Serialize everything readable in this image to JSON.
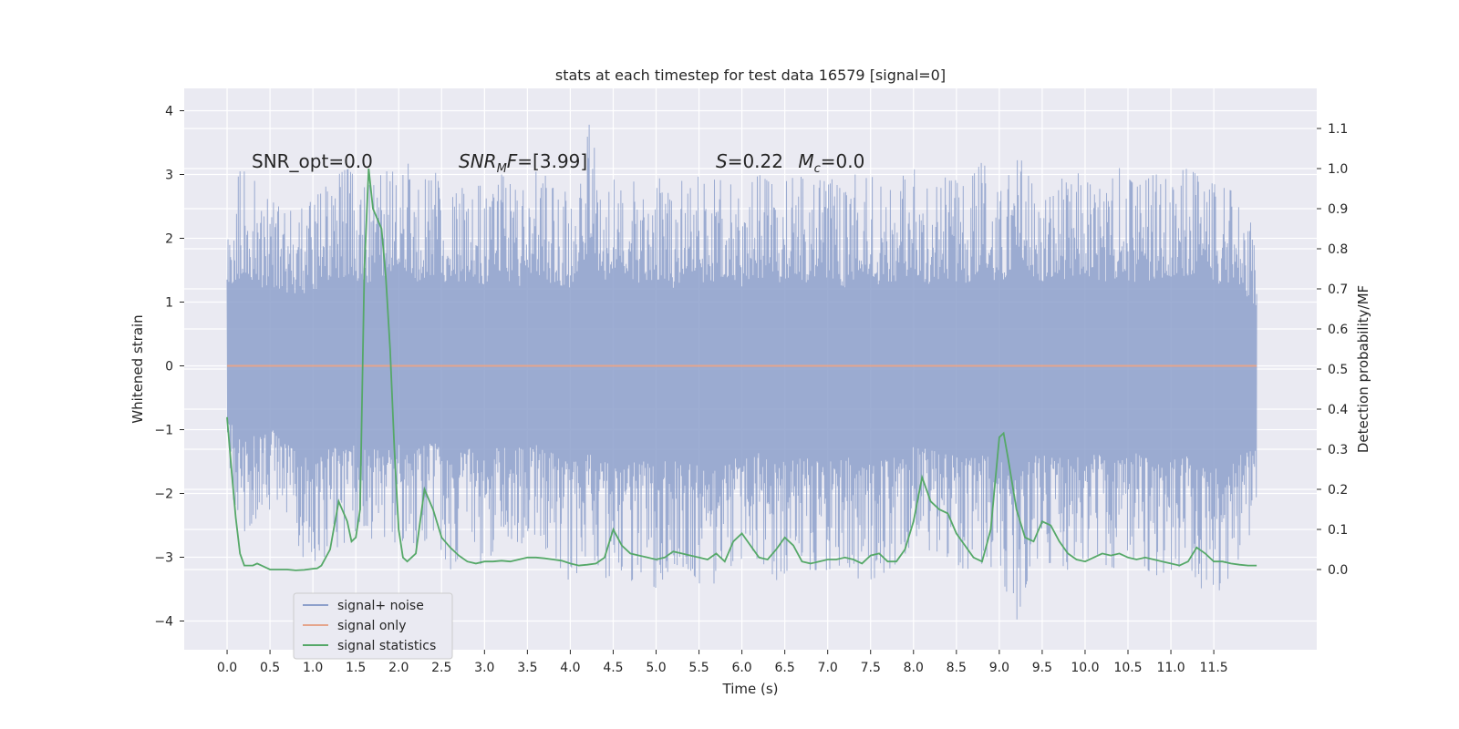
{
  "chart_data": {
    "type": "line",
    "title": "stats at each timestep for test data 16579 [signal=0]",
    "xlabel": "Time (s)",
    "ylabel": "Whitened strain",
    "ylabel_right": "Detection probability/MF",
    "xlim": [
      -0.5,
      12.7
    ],
    "ylim": [
      -4.45,
      4.35
    ],
    "ylim_right": [
      -0.2,
      1.2
    ],
    "xticks": [
      0.0,
      0.5,
      1.0,
      1.5,
      2.0,
      2.5,
      3.0,
      3.5,
      4.0,
      4.5,
      5.0,
      5.5,
      6.0,
      6.5,
      7.0,
      7.5,
      8.0,
      8.5,
      9.0,
      9.5,
      10.0,
      10.5,
      11.0,
      11.5
    ],
    "xtick_labels": [
      "0.0",
      "0.5",
      "1.0",
      "1.5",
      "2.0",
      "2.5",
      "3.0",
      "3.5",
      "4.0",
      "4.5",
      "5.0",
      "5.5",
      "6.0",
      "6.5",
      "7.0",
      "7.5",
      "8.0",
      "8.5",
      "9.0",
      "9.5",
      "10.0",
      "10.5",
      "11.0",
      "11.5"
    ],
    "yticks": [
      -4,
      -3,
      -2,
      -1,
      0,
      1,
      2,
      3,
      4
    ],
    "ytick_labels": [
      "−4",
      "−3",
      "−2",
      "−1",
      "0",
      "1",
      "2",
      "3",
      "4"
    ],
    "yticks_right": [
      0.0,
      0.1,
      0.2,
      0.3,
      0.4,
      0.5,
      0.6,
      0.7,
      0.8,
      0.9,
      1.0,
      1.1
    ],
    "ytick_right_labels": [
      "0.0",
      "0.1",
      "0.2",
      "0.3",
      "0.4",
      "0.5",
      "0.6",
      "0.7",
      "0.8",
      "0.9",
      "1.0",
      "1.1"
    ],
    "grid": true,
    "legend_position": "lower-left",
    "annotations": [
      {
        "text": "SNR_opt=0.0",
        "x": 0.2,
        "y": 3.2
      },
      {
        "text": "SNR_MF=[3.99]",
        "x": 2.6,
        "y": 3.2
      },
      {
        "text": "S=0.22   M_c=0.0",
        "x": 5.6,
        "y": 3.2
      }
    ],
    "series": [
      {
        "name": "signal+ noise",
        "axis": "left",
        "color": "#8da0cb",
        "x_range": [
          0.0,
          12.0
        ],
        "envelope": {
          "x": [
            0.0,
            0.2,
            0.4,
            0.6,
            0.8,
            1.0,
            1.2,
            1.4,
            1.6,
            1.8,
            2.0,
            2.2,
            2.4,
            2.6,
            2.8,
            3.0,
            3.2,
            3.4,
            3.6,
            3.8,
            4.0,
            4.2,
            4.4,
            4.6,
            4.8,
            5.0,
            5.2,
            5.4,
            5.6,
            5.8,
            6.0,
            6.2,
            6.4,
            6.6,
            6.8,
            7.0,
            7.2,
            7.4,
            7.6,
            7.8,
            8.0,
            8.2,
            8.4,
            8.6,
            8.8,
            9.0,
            9.2,
            9.4,
            9.6,
            9.8,
            10.0,
            10.2,
            10.4,
            10.6,
            10.8,
            11.0,
            11.2,
            11.4,
            11.6,
            11.8,
            12.0
          ],
          "upper": [
            2.6,
            3.2,
            2.7,
            2.5,
            2.4,
            2.6,
            2.9,
            3.1,
            2.8,
            3.0,
            3.5,
            2.9,
            3.1,
            2.6,
            2.9,
            2.8,
            3.0,
            2.7,
            3.2,
            2.8,
            2.7,
            3.9,
            2.7,
            3.1,
            2.8,
            3.0,
            2.7,
            3.1,
            2.8,
            3.1,
            2.7,
            3.0,
            2.8,
            3.1,
            2.8,
            3.0,
            2.7,
            3.2,
            2.8,
            2.9,
            3.1,
            2.7,
            3.0,
            2.8,
            3.2,
            2.8,
            3.4,
            2.8,
            3.0,
            2.9,
            3.2,
            2.7,
            3.1,
            2.8,
            3.0,
            3.0,
            3.1,
            2.9,
            2.8,
            2.7,
            2.0
          ],
          "lower": [
            -1.8,
            -2.6,
            -2.3,
            -2.2,
            -2.7,
            -3.4,
            -2.8,
            -2.9,
            -2.5,
            -3.0,
            -2.7,
            -2.9,
            -2.6,
            -3.2,
            -2.8,
            -3.2,
            -2.6,
            -2.8,
            -2.7,
            -3.0,
            -3.4,
            -3.0,
            -3.3,
            -3.6,
            -3.2,
            -3.5,
            -3.1,
            -3.2,
            -3.6,
            -3.1,
            -3.2,
            -3.0,
            -3.4,
            -3.1,
            -3.2,
            -3.2,
            -3.1,
            -3.4,
            -3.3,
            -3.1,
            -2.8,
            -2.9,
            -3.0,
            -3.2,
            -3.1,
            -3.2,
            -4.0,
            -3.0,
            -3.1,
            -3.2,
            -3.0,
            -3.1,
            -3.2,
            -3.0,
            -3.3,
            -3.2,
            -3.1,
            -3.6,
            -3.5,
            -3.0,
            -2.4
          ]
        }
      },
      {
        "name": "signal only",
        "axis": "left",
        "color": "#e5a58c",
        "x": [
          0.0,
          12.0
        ],
        "y": [
          0.0,
          0.0
        ]
      },
      {
        "name": "signal statistics",
        "axis": "right",
        "color": "#55a868",
        "x": [
          0.0,
          0.05,
          0.1,
          0.15,
          0.2,
          0.25,
          0.3,
          0.35,
          0.4,
          0.5,
          0.6,
          0.7,
          0.8,
          0.9,
          1.0,
          1.05,
          1.1,
          1.2,
          1.3,
          1.4,
          1.45,
          1.5,
          1.55,
          1.6,
          1.65,
          1.7,
          1.8,
          1.85,
          1.9,
          1.95,
          2.0,
          2.05,
          2.1,
          2.2,
          2.3,
          2.4,
          2.5,
          2.6,
          2.7,
          2.8,
          2.9,
          3.0,
          3.1,
          3.2,
          3.3,
          3.4,
          3.5,
          3.6,
          3.7,
          3.8,
          3.9,
          4.0,
          4.1,
          4.2,
          4.3,
          4.4,
          4.5,
          4.6,
          4.7,
          4.8,
          4.9,
          5.0,
          5.1,
          5.2,
          5.3,
          5.4,
          5.5,
          5.6,
          5.7,
          5.8,
          5.9,
          6.0,
          6.1,
          6.2,
          6.3,
          6.4,
          6.5,
          6.6,
          6.7,
          6.8,
          6.9,
          7.0,
          7.1,
          7.2,
          7.3,
          7.4,
          7.5,
          7.6,
          7.7,
          7.8,
          7.9,
          8.0,
          8.1,
          8.2,
          8.3,
          8.4,
          8.5,
          8.6,
          8.7,
          8.8,
          8.9,
          9.0,
          9.05,
          9.1,
          9.2,
          9.3,
          9.4,
          9.5,
          9.6,
          9.7,
          9.8,
          9.9,
          10.0,
          10.1,
          10.2,
          10.3,
          10.4,
          10.5,
          10.6,
          10.7,
          10.8,
          10.9,
          11.0,
          11.1,
          11.2,
          11.3,
          11.4,
          11.5,
          11.6,
          11.7,
          11.8,
          11.9,
          12.0
        ],
        "y": [
          0.38,
          0.25,
          0.13,
          0.04,
          0.01,
          0.01,
          0.01,
          0.015,
          0.01,
          0.0,
          0.0,
          0.0,
          -0.002,
          -0.001,
          0.002,
          0.003,
          0.01,
          0.05,
          0.17,
          0.12,
          0.07,
          0.08,
          0.15,
          0.75,
          1.0,
          0.9,
          0.85,
          0.73,
          0.55,
          0.3,
          0.1,
          0.03,
          0.02,
          0.04,
          0.2,
          0.15,
          0.08,
          0.055,
          0.035,
          0.02,
          0.015,
          0.02,
          0.02,
          0.022,
          0.02,
          0.025,
          0.03,
          0.03,
          0.028,
          0.025,
          0.022,
          0.015,
          0.01,
          0.012,
          0.015,
          0.03,
          0.1,
          0.06,
          0.04,
          0.035,
          0.03,
          0.025,
          0.03,
          0.045,
          0.04,
          0.035,
          0.03,
          0.025,
          0.04,
          0.02,
          0.07,
          0.09,
          0.06,
          0.03,
          0.025,
          0.05,
          0.08,
          0.06,
          0.02,
          0.015,
          0.02,
          0.025,
          0.025,
          0.03,
          0.025,
          0.015,
          0.035,
          0.04,
          0.02,
          0.02,
          0.05,
          0.12,
          0.23,
          0.17,
          0.15,
          0.14,
          0.09,
          0.06,
          0.03,
          0.02,
          0.1,
          0.33,
          0.34,
          0.28,
          0.15,
          0.08,
          0.07,
          0.12,
          0.11,
          0.07,
          0.04,
          0.025,
          0.02,
          0.03,
          0.04,
          0.035,
          0.04,
          0.03,
          0.025,
          0.03,
          0.025,
          0.02,
          0.015,
          0.01,
          0.02,
          0.055,
          0.04,
          0.02,
          0.02,
          0.015,
          0.012,
          0.01,
          0.01
        ]
      }
    ]
  }
}
